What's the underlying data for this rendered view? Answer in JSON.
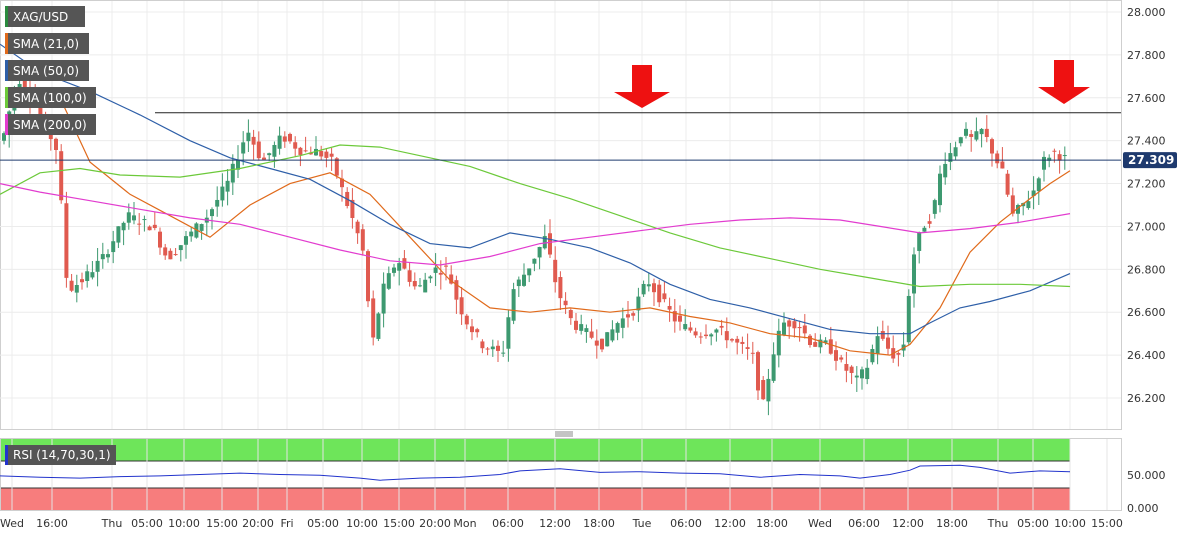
{
  "chart_data": {
    "type": "candlestick",
    "symbol": "XAG/USD",
    "current_price": "27.309",
    "indicators": [
      {
        "label": "SMA (21,0)",
        "color": "#e06a1b"
      },
      {
        "label": "SMA (50,0)",
        "color": "#2e5fa8"
      },
      {
        "label": "SMA (100,0)",
        "color": "#6cc93a"
      },
      {
        "label": "SMA (200,0)",
        "color": "#e23ccf"
      }
    ],
    "y_ticks": [
      "26.200",
      "26.400",
      "26.600",
      "26.800",
      "27.000",
      "27.200",
      "27.400",
      "27.600",
      "27.800",
      "28.000"
    ],
    "ylim": [
      26.05,
      28.05
    ],
    "resistance_level": 27.53,
    "x_ticks": [
      "Wed",
      "16:00",
      "Thu",
      "05:00",
      "10:00",
      "15:00",
      "20:00",
      "Fri",
      "05:00",
      "10:00",
      "15:00",
      "20:00",
      "Mon",
      "06:00",
      "12:00",
      "18:00",
      "Tue",
      "06:00",
      "12:00",
      "18:00",
      "Wed",
      "06:00",
      "12:00",
      "18:00",
      "Thu",
      "05:00",
      "10:00",
      "15:00"
    ],
    "x_tick_positions": [
      12,
      52,
      112,
      147,
      184,
      222,
      258,
      287,
      323,
      362,
      399,
      435,
      465,
      508,
      555,
      599,
      642,
      686,
      730,
      772,
      820,
      864,
      908,
      952,
      998,
      1033,
      1070,
      1107
    ],
    "price_anchors": [
      [
        5,
        27.4
      ],
      [
        20,
        27.7
      ],
      [
        35,
        27.6
      ],
      [
        50,
        27.45
      ],
      [
        60,
        27.35
      ],
      [
        70,
        26.7
      ],
      [
        85,
        26.75
      ],
      [
        105,
        26.85
      ],
      [
        130,
        27.05
      ],
      [
        155,
        27.0
      ],
      [
        170,
        26.85
      ],
      [
        190,
        26.95
      ],
      [
        210,
        27.05
      ],
      [
        230,
        27.2
      ],
      [
        250,
        27.45
      ],
      [
        265,
        27.3
      ],
      [
        285,
        27.42
      ],
      [
        305,
        27.35
      ],
      [
        320,
        27.35
      ],
      [
        335,
        27.3
      ],
      [
        350,
        27.1
      ],
      [
        365,
        26.9
      ],
      [
        375,
        26.45
      ],
      [
        385,
        26.7
      ],
      [
        400,
        26.85
      ],
      [
        420,
        26.7
      ],
      [
        435,
        26.8
      ],
      [
        450,
        26.8
      ],
      [
        460,
        26.65
      ],
      [
        470,
        26.55
      ],
      [
        485,
        26.45
      ],
      [
        505,
        26.4
      ],
      [
        515,
        26.7
      ],
      [
        530,
        26.8
      ],
      [
        548,
        26.95
      ],
      [
        560,
        26.7
      ],
      [
        575,
        26.55
      ],
      [
        590,
        26.5
      ],
      [
        605,
        26.45
      ],
      [
        620,
        26.55
      ],
      [
        635,
        26.6
      ],
      [
        650,
        26.75
      ],
      [
        665,
        26.65
      ],
      [
        680,
        26.55
      ],
      [
        700,
        26.5
      ],
      [
        720,
        26.52
      ],
      [
        740,
        26.45
      ],
      [
        755,
        26.4
      ],
      [
        765,
        26.15
      ],
      [
        775,
        26.4
      ],
      [
        785,
        26.55
      ],
      [
        800,
        26.55
      ],
      [
        815,
        26.45
      ],
      [
        830,
        26.45
      ],
      [
        845,
        26.35
      ],
      [
        860,
        26.28
      ],
      [
        870,
        26.35
      ],
      [
        880,
        26.5
      ],
      [
        895,
        26.4
      ],
      [
        905,
        26.4
      ],
      [
        915,
        26.85
      ],
      [
        925,
        27.0
      ],
      [
        935,
        27.05
      ],
      [
        945,
        27.3
      ],
      [
        955,
        27.35
      ],
      [
        965,
        27.45
      ],
      [
        975,
        27.4
      ],
      [
        985,
        27.45
      ],
      [
        995,
        27.35
      ],
      [
        1005,
        27.25
      ],
      [
        1015,
        27.05
      ],
      [
        1025,
        27.1
      ],
      [
        1035,
        27.15
      ],
      [
        1045,
        27.3
      ],
      [
        1055,
        27.35
      ],
      [
        1070,
        27.31
      ]
    ],
    "sma21_points": [
      [
        60,
        27.6
      ],
      [
        90,
        27.3
      ],
      [
        130,
        27.15
      ],
      [
        170,
        27.05
      ],
      [
        210,
        26.95
      ],
      [
        250,
        27.1
      ],
      [
        290,
        27.2
      ],
      [
        330,
        27.25
      ],
      [
        370,
        27.15
      ],
      [
        410,
        26.95
      ],
      [
        450,
        26.75
      ],
      [
        490,
        26.62
      ],
      [
        530,
        26.6
      ],
      [
        570,
        26.62
      ],
      [
        610,
        26.6
      ],
      [
        650,
        26.62
      ],
      [
        690,
        26.58
      ],
      [
        730,
        26.55
      ],
      [
        770,
        26.5
      ],
      [
        810,
        26.48
      ],
      [
        850,
        26.42
      ],
      [
        890,
        26.4
      ],
      [
        910,
        26.45
      ],
      [
        940,
        26.62
      ],
      [
        970,
        26.88
      ],
      [
        1000,
        27.02
      ],
      [
        1030,
        27.13
      ],
      [
        1050,
        27.2
      ],
      [
        1070,
        27.26
      ]
    ],
    "sma50_points": [
      [
        0,
        27.85
      ],
      [
        40,
        27.72
      ],
      [
        90,
        27.63
      ],
      [
        140,
        27.52
      ],
      [
        190,
        27.4
      ],
      [
        230,
        27.32
      ],
      [
        270,
        27.27
      ],
      [
        310,
        27.22
      ],
      [
        350,
        27.12
      ],
      [
        390,
        27.01
      ],
      [
        430,
        26.92
      ],
      [
        470,
        26.9
      ],
      [
        510,
        26.97
      ],
      [
        550,
        26.94
      ],
      [
        590,
        26.9
      ],
      [
        630,
        26.83
      ],
      [
        670,
        26.73
      ],
      [
        710,
        26.66
      ],
      [
        750,
        26.62
      ],
      [
        790,
        26.57
      ],
      [
        830,
        26.52
      ],
      [
        870,
        26.5
      ],
      [
        910,
        26.5
      ],
      [
        930,
        26.55
      ],
      [
        960,
        26.62
      ],
      [
        990,
        26.65
      ],
      [
        1030,
        26.7
      ],
      [
        1070,
        26.78
      ]
    ],
    "sma100_points": [
      [
        0,
        27.15
      ],
      [
        40,
        27.25
      ],
      [
        80,
        27.27
      ],
      [
        120,
        27.24
      ],
      [
        180,
        27.23
      ],
      [
        240,
        27.27
      ],
      [
        300,
        27.33
      ],
      [
        340,
        27.38
      ],
      [
        380,
        27.37
      ],
      [
        420,
        27.33
      ],
      [
        470,
        27.28
      ],
      [
        520,
        27.2
      ],
      [
        570,
        27.13
      ],
      [
        620,
        27.05
      ],
      [
        670,
        26.97
      ],
      [
        720,
        26.9
      ],
      [
        770,
        26.85
      ],
      [
        820,
        26.8
      ],
      [
        870,
        26.76
      ],
      [
        920,
        26.72
      ],
      [
        970,
        26.73
      ],
      [
        1020,
        26.73
      ],
      [
        1070,
        26.72
      ]
    ],
    "sma200_points": [
      [
        0,
        27.2
      ],
      [
        40,
        27.16
      ],
      [
        90,
        27.12
      ],
      [
        140,
        27.08
      ],
      [
        190,
        27.04
      ],
      [
        240,
        27.01
      ],
      [
        290,
        26.95
      ],
      [
        340,
        26.89
      ],
      [
        390,
        26.84
      ],
      [
        440,
        26.82
      ],
      [
        490,
        26.86
      ],
      [
        540,
        26.92
      ],
      [
        590,
        26.95
      ],
      [
        640,
        26.98
      ],
      [
        690,
        27.01
      ],
      [
        740,
        27.03
      ],
      [
        790,
        27.04
      ],
      [
        840,
        27.03
      ],
      [
        880,
        27.0
      ],
      [
        920,
        26.97
      ],
      [
        970,
        26.99
      ],
      [
        1020,
        27.02
      ],
      [
        1070,
        27.06
      ]
    ],
    "rsi": {
      "label": "RSI (14,70,30,1)",
      "y_ticks": [
        "0.000",
        "50.000"
      ],
      "overbought": 70,
      "oversold": 30,
      "points": [
        [
          0,
          48
        ],
        [
          40,
          46
        ],
        [
          80,
          45
        ],
        [
          120,
          47
        ],
        [
          160,
          48
        ],
        [
          200,
          50
        ],
        [
          240,
          52
        ],
        [
          280,
          50
        ],
        [
          320,
          49
        ],
        [
          360,
          45
        ],
        [
          380,
          42
        ],
        [
          420,
          45
        ],
        [
          460,
          46
        ],
        [
          500,
          50
        ],
        [
          520,
          55
        ],
        [
          560,
          58
        ],
        [
          600,
          53
        ],
        [
          640,
          54
        ],
        [
          680,
          52
        ],
        [
          720,
          51
        ],
        [
          760,
          46
        ],
        [
          800,
          50
        ],
        [
          840,
          48
        ],
        [
          860,
          45
        ],
        [
          890,
          50
        ],
        [
          910,
          56
        ],
        [
          920,
          62
        ],
        [
          960,
          63
        ],
        [
          980,
          60
        ],
        [
          1010,
          52
        ],
        [
          1040,
          55
        ],
        [
          1070,
          54
        ]
      ]
    }
  }
}
